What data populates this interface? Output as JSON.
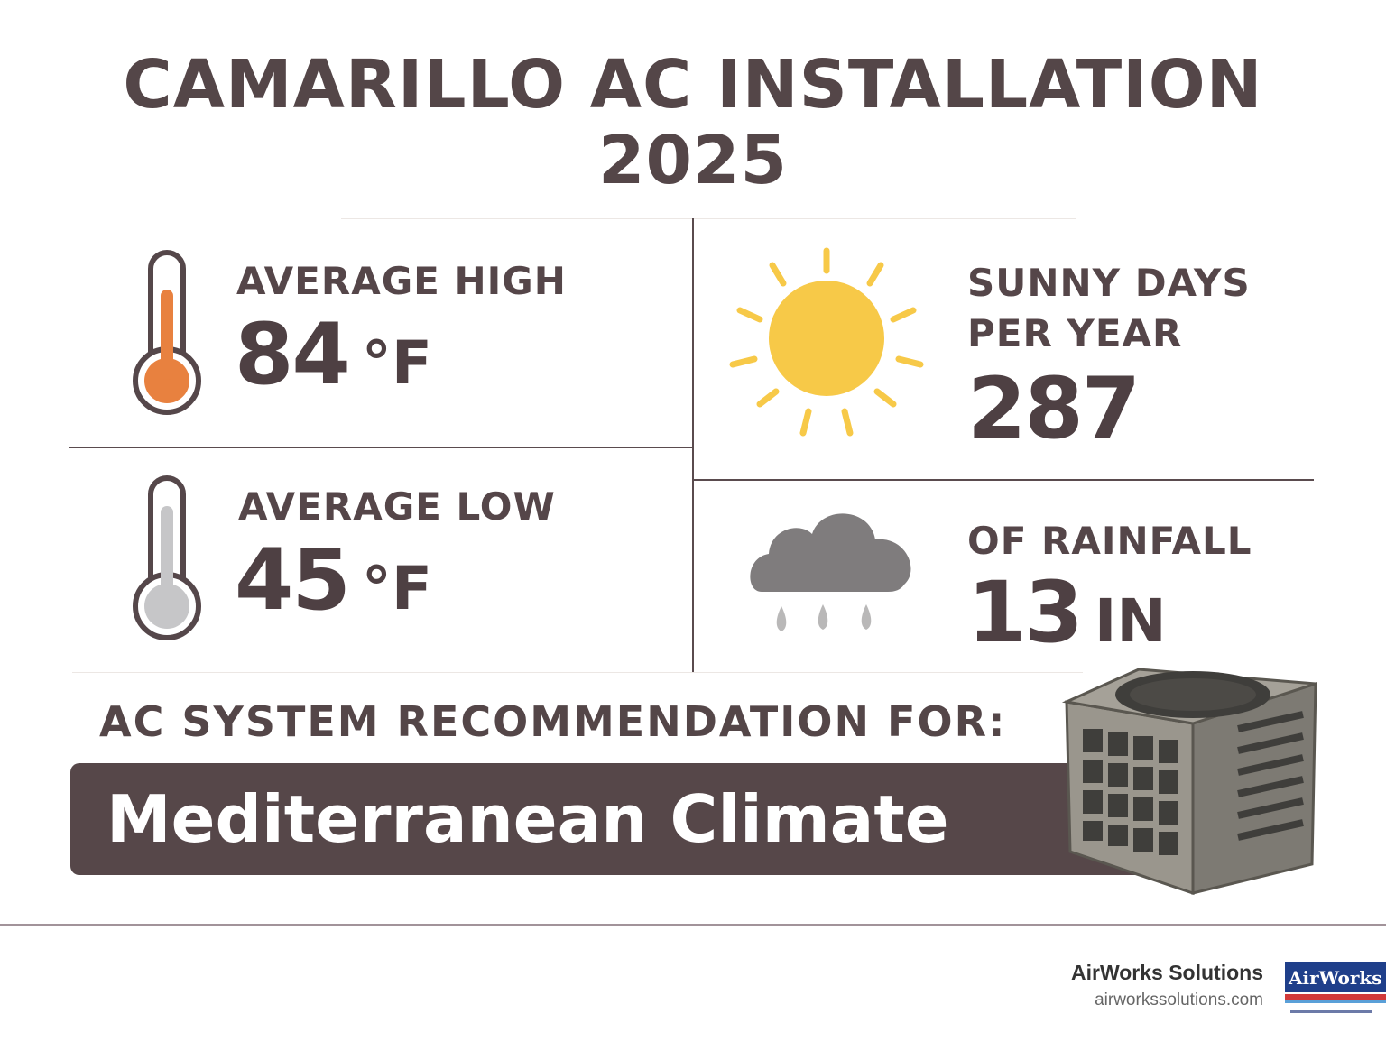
{
  "title": {
    "line1": "CAMARILLO AC INSTALLATION",
    "line2": "2025"
  },
  "stats": {
    "high": {
      "label": "AVERAGE HIGH",
      "value": "84",
      "unit": "°F"
    },
    "low": {
      "label": "AVERAGE LOW",
      "value": "45",
      "unit": "°F"
    },
    "sunny": {
      "label_line1": "SUNNY DAYS",
      "label_line2": "PER YEAR",
      "value": "287"
    },
    "rain": {
      "label": "OF RAINFALL",
      "value": "13",
      "unit": "IN"
    }
  },
  "recommendation": {
    "label": "AC SYSTEM RECOMMENDATION FOR:",
    "climate": "Mediterranean  Climate"
  },
  "footer": {
    "brand": "AirWorks Solutions",
    "url": "airworkssolutions.com",
    "logo_text": "AirWorks"
  },
  "icons": [
    "thermometer-hot-icon",
    "thermometer-cold-icon",
    "sun-icon",
    "rain-cloud-icon",
    "ac-unit-icon"
  ],
  "colors": {
    "text": "#544648",
    "banner": "#564749",
    "hot": "#e8813f",
    "sun": "#f7c948",
    "cloud": "#7f7c7d"
  }
}
